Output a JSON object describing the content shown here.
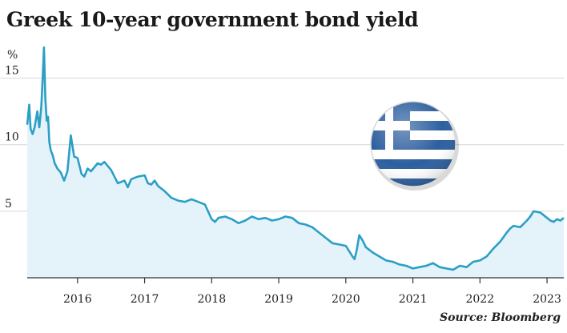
{
  "chart_data": {
    "type": "area",
    "title": "Greek 10-year government bond yield",
    "ylabel": "%",
    "xlabel": "",
    "source": "Source: Bloomberg",
    "ylim": [
      0,
      17.5
    ],
    "xlim": [
      2015.25,
      2023.25
    ],
    "y_ticks": [
      {
        "value": 5,
        "label": "5"
      },
      {
        "value": 10,
        "label": "10"
      },
      {
        "value": 15,
        "label": "15"
      }
    ],
    "x_ticks": [
      {
        "value": 2016,
        "label": "2016"
      },
      {
        "value": 2017,
        "label": "2017"
      },
      {
        "value": 2018,
        "label": "2018"
      },
      {
        "value": 2019,
        "label": "2019"
      },
      {
        "value": 2020,
        "label": "2020"
      },
      {
        "value": 2021,
        "label": "2021"
      },
      {
        "value": 2022,
        "label": "2022"
      },
      {
        "value": 2023,
        "label": "2023"
      }
    ],
    "grid": "horizontal",
    "series": [
      {
        "name": "Greek 10-year government bond yield",
        "color": "#2b9fc5",
        "fill": "#e4f3fa",
        "x": [
          2015.25,
          2015.28,
          2015.3,
          2015.33,
          2015.36,
          2015.4,
          2015.43,
          2015.46,
          2015.48,
          2015.5,
          2015.52,
          2015.54,
          2015.56,
          2015.58,
          2015.6,
          2015.63,
          2015.66,
          2015.7,
          2015.75,
          2015.8,
          2015.85,
          2015.9,
          2015.95,
          2016.0,
          2016.03,
          2016.06,
          2016.1,
          2016.15,
          2016.2,
          2016.25,
          2016.3,
          2016.35,
          2016.4,
          2016.5,
          2016.6,
          2016.7,
          2016.75,
          2016.8,
          2016.9,
          2017.0,
          2017.05,
          2017.1,
          2017.15,
          2017.2,
          2017.3,
          2017.4,
          2017.5,
          2017.6,
          2017.7,
          2017.8,
          2017.9,
          2018.0,
          2018.05,
          2018.1,
          2018.2,
          2018.3,
          2018.4,
          2018.5,
          2018.6,
          2018.7,
          2018.8,
          2018.9,
          2019.0,
          2019.1,
          2019.2,
          2019.3,
          2019.4,
          2019.5,
          2019.6,
          2019.7,
          2019.8,
          2019.9,
          2020.0,
          2020.1,
          2020.13,
          2020.16,
          2020.2,
          2020.25,
          2020.3,
          2020.4,
          2020.5,
          2020.6,
          2020.7,
          2020.8,
          2020.9,
          2021.0,
          2021.1,
          2021.2,
          2021.3,
          2021.4,
          2021.5,
          2021.6,
          2021.7,
          2021.8,
          2021.9,
          2022.0,
          2022.1,
          2022.2,
          2022.3,
          2022.4,
          2022.45,
          2022.5,
          2022.6,
          2022.7,
          2022.75,
          2022.8,
          2022.9,
          2023.0,
          2023.05,
          2023.1,
          2023.15,
          2023.2,
          2023.25
        ],
        "values": [
          11.5,
          13.0,
          11.2,
          10.8,
          11.3,
          12.5,
          11.3,
          12.9,
          15.0,
          17.3,
          13.5,
          11.8,
          12.1,
          10.2,
          9.6,
          9.2,
          8.6,
          8.2,
          7.9,
          7.3,
          8.0,
          10.7,
          9.1,
          9.0,
          8.4,
          7.8,
          7.6,
          8.2,
          8.0,
          8.3,
          8.6,
          8.5,
          8.7,
          8.1,
          7.1,
          7.3,
          6.8,
          7.4,
          7.6,
          7.7,
          7.1,
          7.0,
          7.3,
          6.9,
          6.5,
          6.0,
          5.8,
          5.7,
          5.9,
          5.7,
          5.5,
          4.4,
          4.2,
          4.5,
          4.6,
          4.4,
          4.1,
          4.3,
          4.6,
          4.4,
          4.5,
          4.3,
          4.4,
          4.6,
          4.5,
          4.1,
          4.0,
          3.8,
          3.4,
          3.0,
          2.6,
          2.5,
          2.4,
          1.6,
          1.4,
          2.0,
          3.2,
          2.8,
          2.3,
          1.9,
          1.6,
          1.3,
          1.2,
          1.0,
          0.9,
          0.7,
          0.8,
          0.9,
          1.1,
          0.8,
          0.7,
          0.6,
          0.9,
          0.8,
          1.2,
          1.3,
          1.6,
          2.2,
          2.7,
          3.4,
          3.7,
          3.9,
          3.8,
          4.3,
          4.6,
          5.0,
          4.9,
          4.5,
          4.3,
          4.2,
          4.4,
          4.3,
          4.5
        ]
      }
    ]
  }
}
